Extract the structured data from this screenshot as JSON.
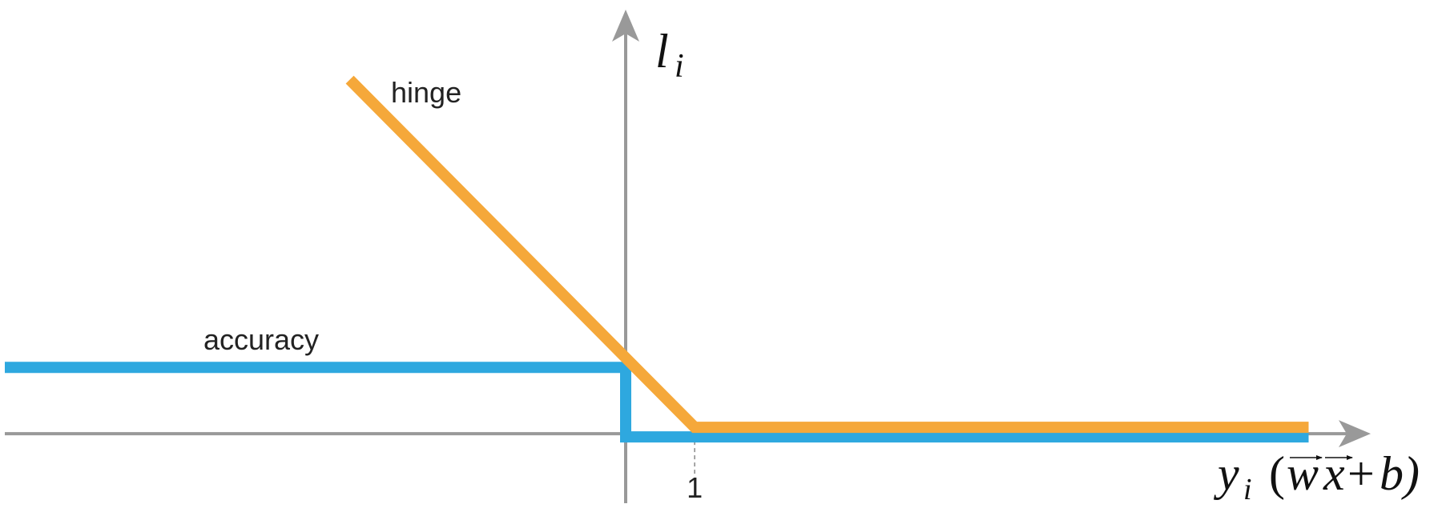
{
  "chart_data": {
    "type": "line",
    "series": [
      {
        "name": "hinge",
        "color": "#f5a83a",
        "x": [
          -4,
          1,
          9.9
        ],
        "values": [
          5,
          0,
          0
        ]
      },
      {
        "name": "accuracy",
        "color": "#2ea8df",
        "x": [
          -9,
          0,
          0,
          9.9
        ],
        "values": [
          1,
          1,
          0,
          0
        ]
      }
    ],
    "xlim": [
      -9,
      10.8
    ],
    "ylim": [
      -1,
      6.1
    ],
    "xticks": [
      1
    ],
    "ylabel_parts": [
      "l",
      "i"
    ],
    "xlabel_parts": [
      "y",
      "i",
      "(",
      "w",
      "x",
      "+",
      "b)"
    ]
  }
}
